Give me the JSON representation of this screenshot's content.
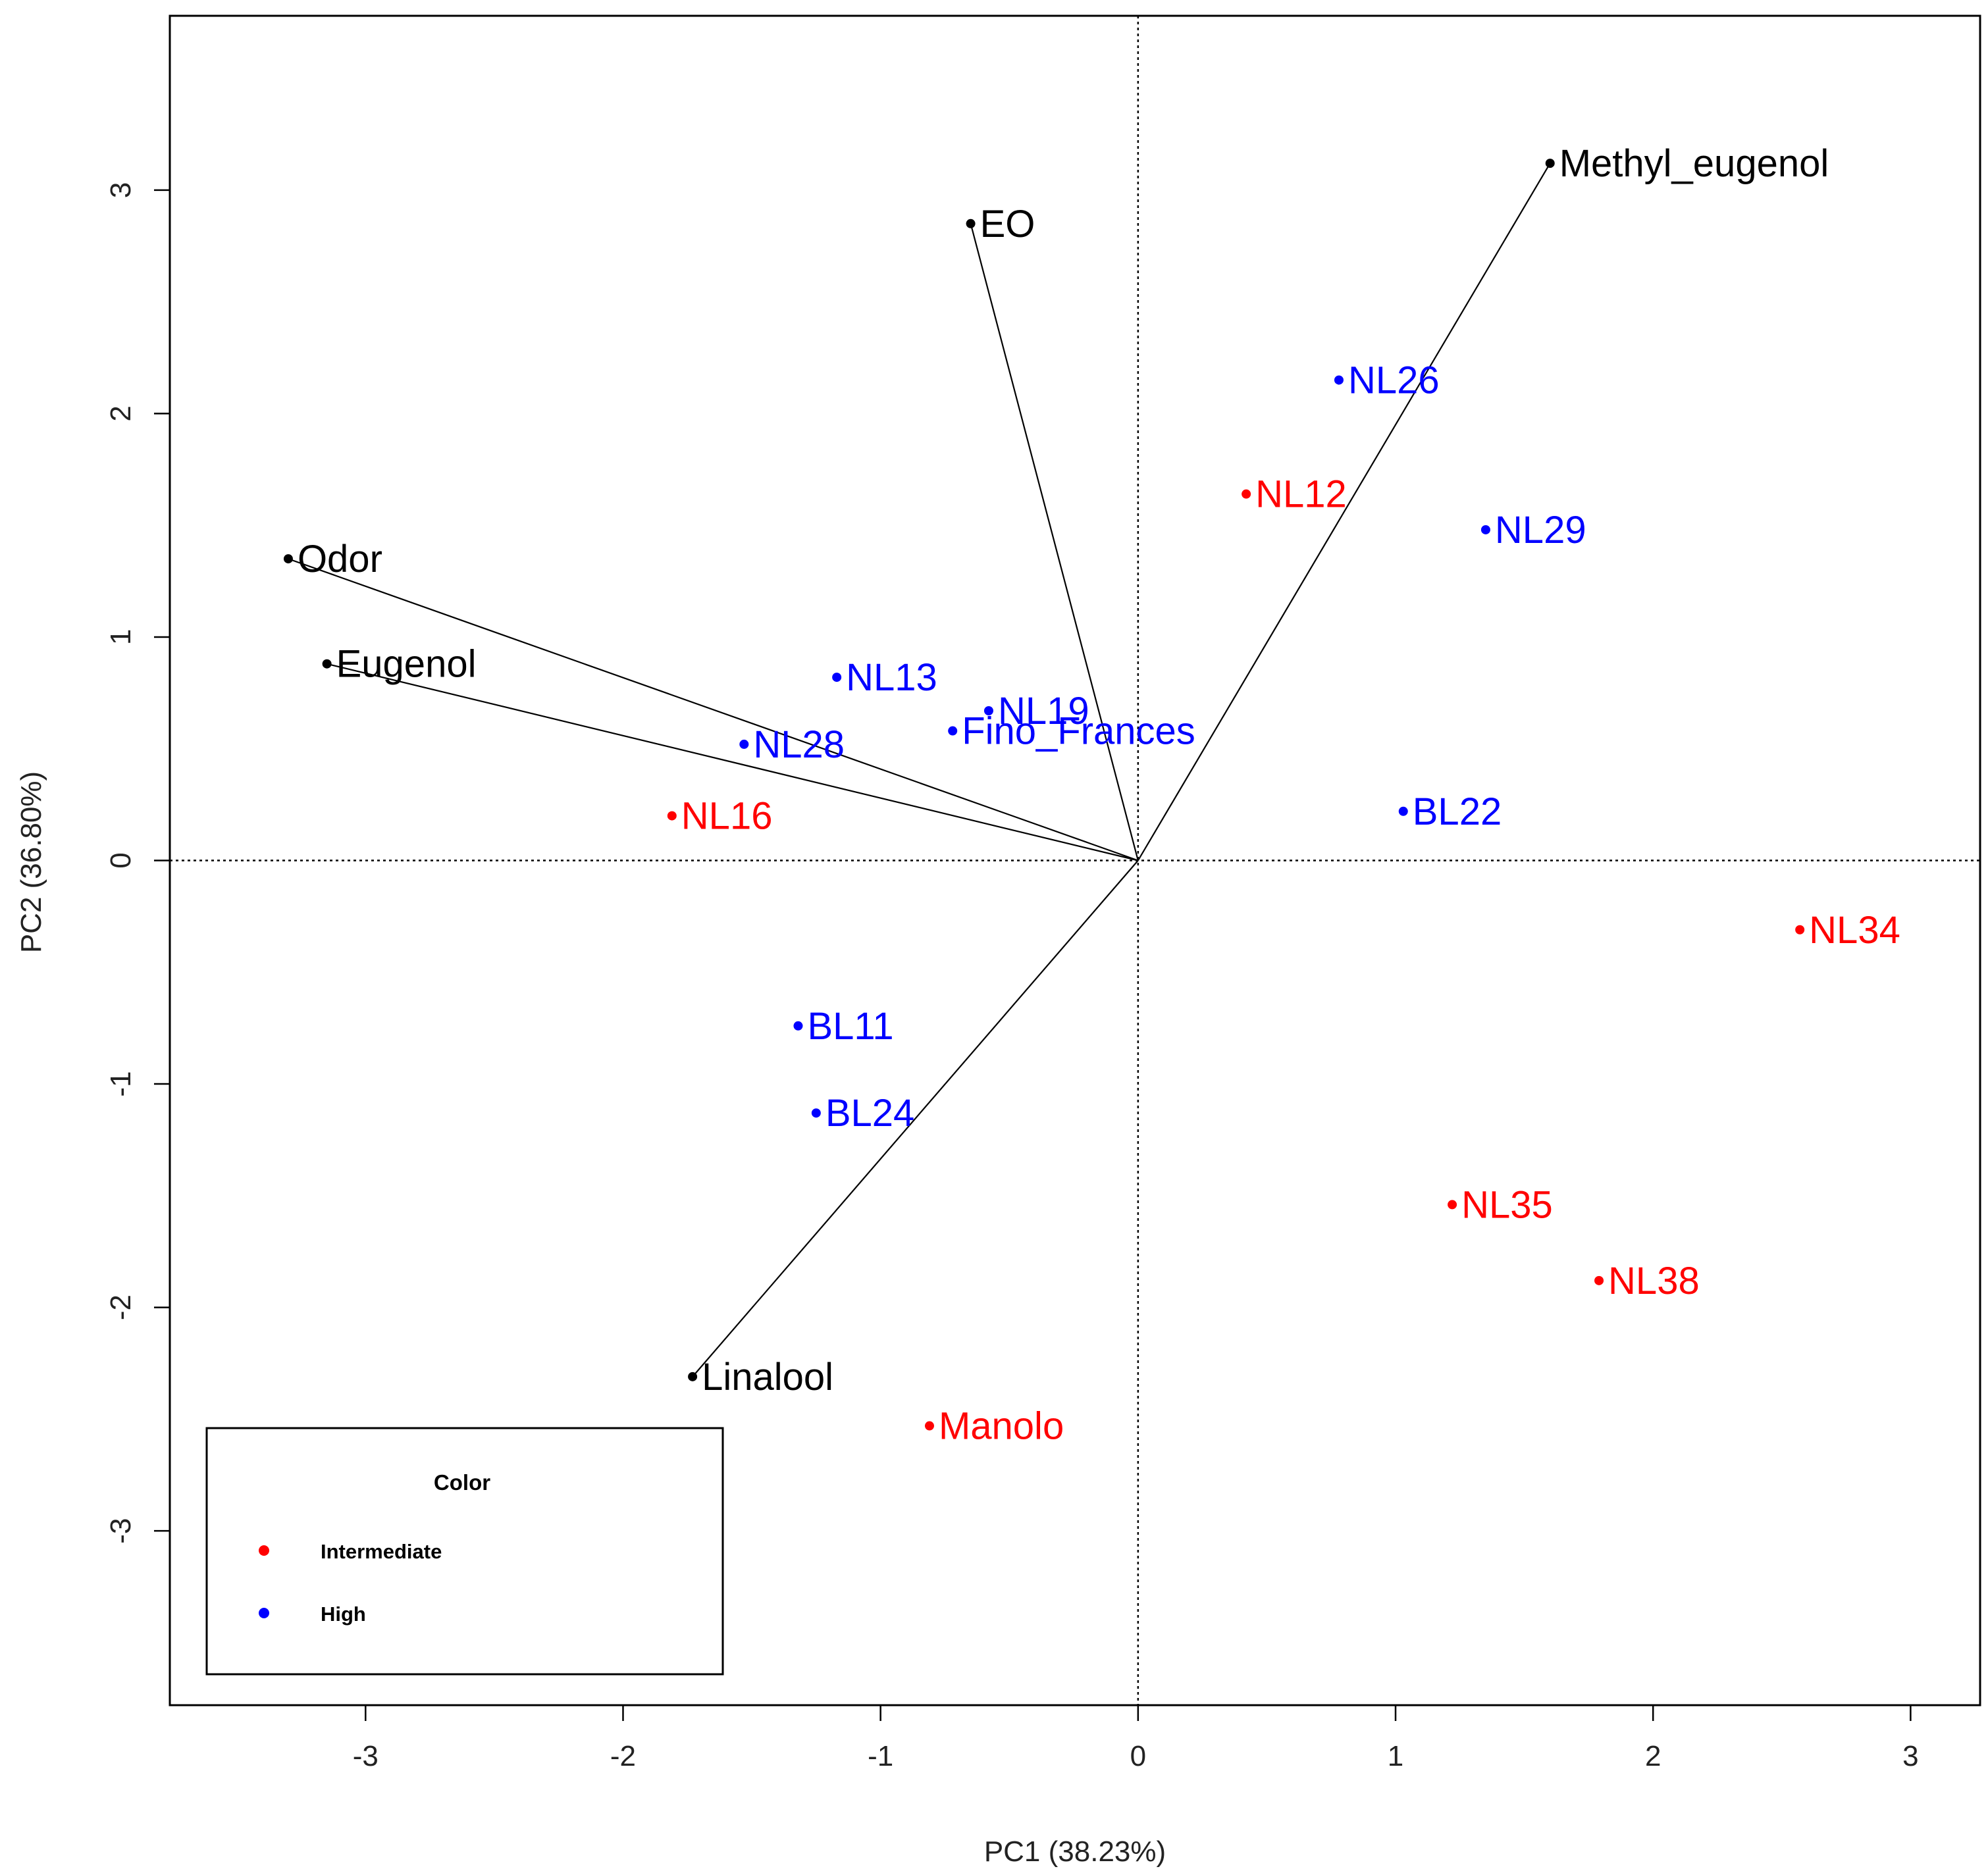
{
  "chart_data": {
    "type": "scatter",
    "subtype": "pca-biplot",
    "title": "",
    "xlabel": "PC1 (38.23%)",
    "ylabel": "PC2 (36.80%)",
    "xlim": [
      -3.76,
      3.27
    ],
    "ylim": [
      -3.78,
      3.78
    ],
    "xticks": [
      -3,
      -2,
      -1,
      0,
      1,
      2,
      3
    ],
    "yticks": [
      -3,
      -2,
      -1,
      0,
      1,
      2,
      3
    ],
    "xtick_labels": [
      "-3",
      "-2",
      "-1",
      "0",
      "1",
      "2",
      "3"
    ],
    "ytick_labels": [
      "-3",
      "-2",
      "-1",
      "0",
      "1",
      "2",
      "3"
    ],
    "reference_lines": {
      "x": 0,
      "y": 0,
      "style": "dotted"
    },
    "loadings": [
      {
        "name": "Methyl_eugenol",
        "x": 1.6,
        "y": 3.12
      },
      {
        "name": "EO",
        "x": -0.65,
        "y": 2.85
      },
      {
        "name": "Odor",
        "x": -3.3,
        "y": 1.35
      },
      {
        "name": "Eugenol",
        "x": -3.15,
        "y": 0.88
      },
      {
        "name": "Linalool",
        "x": -1.73,
        "y": -2.31
      }
    ],
    "series": [
      {
        "name": "Intermediate",
        "color": "#ff0000",
        "points": [
          {
            "label": "NL12",
            "x": 0.42,
            "y": 1.64
          },
          {
            "label": "NL16",
            "x": -1.81,
            "y": 0.2
          },
          {
            "label": "NL34",
            "x": 2.57,
            "y": -0.31
          },
          {
            "label": "NL35",
            "x": 1.22,
            "y": -1.54
          },
          {
            "label": "NL38",
            "x": 1.79,
            "y": -1.88
          },
          {
            "label": "Manolo",
            "x": -0.81,
            "y": -2.53
          }
        ]
      },
      {
        "name": "High",
        "color": "#0000ff",
        "points": [
          {
            "label": "NL26",
            "x": 0.78,
            "y": 2.15
          },
          {
            "label": "NL29",
            "x": 1.35,
            "y": 1.48
          },
          {
            "label": "NL13",
            "x": -1.17,
            "y": 0.82
          },
          {
            "label": "NL19",
            "x": -0.58,
            "y": 0.67
          },
          {
            "label": "Fino_Frances",
            "x": -0.72,
            "y": 0.58
          },
          {
            "label": "NL28",
            "x": -1.53,
            "y": 0.52
          },
          {
            "label": "BL22",
            "x": 1.03,
            "y": 0.22
          },
          {
            "label": "BL11",
            "x": -1.32,
            "y": -0.74
          },
          {
            "label": "BL24",
            "x": -1.25,
            "y": -1.13
          }
        ]
      }
    ],
    "legend": {
      "title": "Color",
      "position": "bottom-left",
      "entries": [
        {
          "label": "Intermediate",
          "color": "#ff0000"
        },
        {
          "label": "High",
          "color": "#0000ff"
        }
      ]
    }
  }
}
